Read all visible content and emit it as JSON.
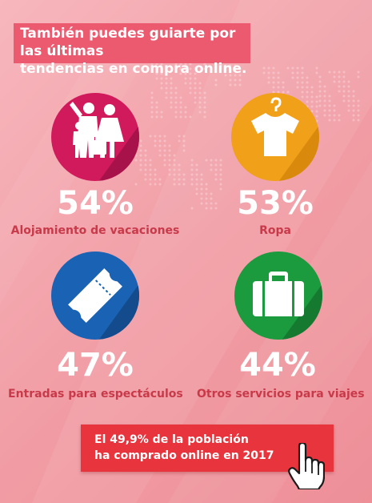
{
  "header": {
    "line1": "También puedes guiarte por las últimas",
    "line2": "tendencias en compra online."
  },
  "stats": [
    {
      "percent": "54%",
      "label": "Alojamiento de vacaciones",
      "icon": "family-luggage-icon",
      "color": "#d11a5b"
    },
    {
      "percent": "53%",
      "label": "Ropa",
      "icon": "shirt-hanger-icon",
      "color": "#f0a019"
    },
    {
      "percent": "47%",
      "label": "Entradas para espectáculos",
      "icon": "ticket-icon",
      "color": "#1a63b4"
    },
    {
      "percent": "44%",
      "label": "Otros servicios para viajes",
      "icon": "suitcase-icon",
      "color": "#1b9a3e"
    }
  ],
  "cta": {
    "line1": "El 49,9% de la población",
    "line2": "ha comprado online en 2017",
    "icon": "pointer-hand-icon",
    "color": "#e7343d"
  },
  "colors": {
    "background": "#f4a9b0",
    "header_bg": "#ec5a70",
    "label_text": "#c83a4a",
    "percent_text": "#ffffff"
  }
}
